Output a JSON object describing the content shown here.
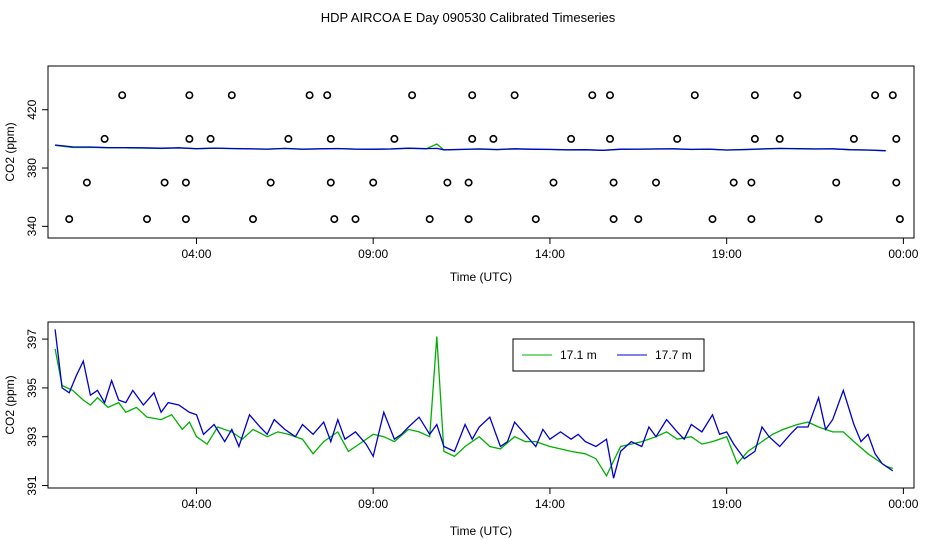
{
  "title": "HDP AIRCOA E  Day 090530  Calibrated Timeseries",
  "colors": {
    "series_17_1": "#00b000",
    "series_17_7": "#0000cc",
    "axis": "#000000"
  },
  "chart_data": [
    {
      "type": "line",
      "xlabel": "Time (UTC)",
      "ylabel": "CO2 (ppm)",
      "x_ticks": [
        "04:00",
        "09:00",
        "14:00",
        "19:00",
        "00:00"
      ],
      "x_tick_hours": [
        4,
        9,
        14,
        19,
        24
      ],
      "xlim_hours": [
        -0.2,
        24.3
      ],
      "y_ticks": [
        340,
        380,
        420
      ],
      "ylim": [
        332,
        450
      ],
      "grid": false,
      "series": [
        {
          "key": "17.1",
          "color": "#00b000",
          "x": [
            0.0,
            0.5,
            1.0,
            1.5,
            2.0,
            2.5,
            3.0,
            3.5,
            4.0,
            4.5,
            5.0,
            5.5,
            6.0,
            6.5,
            7.0,
            7.5,
            8.0,
            8.5,
            9.0,
            9.5,
            10.0,
            10.5,
            10.8,
            11.0,
            11.5,
            12.0,
            12.5,
            13.0,
            13.5,
            14.0,
            14.5,
            15.0,
            15.5,
            16.0,
            16.5,
            17.0,
            17.5,
            18.0,
            18.5,
            19.0,
            19.5,
            20.0,
            20.5,
            21.0,
            21.5,
            22.0,
            22.5,
            23.0,
            23.5
          ],
          "y": [
            395.5,
            394.1,
            394.2,
            393.9,
            393.8,
            393.7,
            393.4,
            393.8,
            393.2,
            393.6,
            393.3,
            393.1,
            392.9,
            393.4,
            392.8,
            393.1,
            393.3,
            392.9,
            392.8,
            393.0,
            393.5,
            393.2,
            396.5,
            392.4,
            392.7,
            393.0,
            392.6,
            393.1,
            392.8,
            392.7,
            392.4,
            392.5,
            392.1,
            392.8,
            392.9,
            393.0,
            393.1,
            392.7,
            392.9,
            392.3,
            392.6,
            393.0,
            393.4,
            393.2,
            393.0,
            393.1,
            392.5,
            392.3,
            391.8
          ]
        },
        {
          "key": "17.7",
          "color": "#0000cc",
          "x": [
            0.0,
            0.5,
            1.0,
            1.5,
            2.0,
            2.5,
            3.0,
            3.5,
            4.0,
            4.5,
            5.0,
            5.5,
            6.0,
            6.5,
            7.0,
            7.5,
            8.0,
            8.5,
            9.0,
            9.5,
            10.0,
            10.5,
            10.8,
            11.0,
            11.5,
            12.0,
            12.5,
            13.0,
            13.5,
            14.0,
            14.5,
            15.0,
            15.5,
            16.0,
            16.5,
            17.0,
            17.5,
            18.0,
            18.5,
            19.0,
            19.5,
            20.0,
            20.5,
            21.0,
            21.5,
            22.0,
            22.5,
            23.0,
            23.5
          ],
          "y": [
            395.8,
            394.5,
            394.4,
            394.0,
            394.0,
            393.9,
            393.6,
            393.9,
            393.3,
            393.7,
            393.4,
            393.2,
            393.0,
            393.5,
            393.0,
            393.2,
            393.4,
            393.0,
            392.9,
            393.1,
            393.6,
            393.3,
            393.5,
            392.5,
            392.8,
            393.1,
            392.7,
            393.2,
            392.9,
            392.8,
            392.5,
            392.6,
            392.2,
            392.9,
            393.0,
            393.1,
            393.2,
            392.8,
            393.0,
            392.4,
            392.7,
            393.1,
            393.5,
            393.3,
            393.1,
            393.2,
            392.6,
            392.4,
            391.9
          ]
        }
      ],
      "markers": {
        "symbol": "circle",
        "points": [
          {
            "x": 1.9,
            "y": 430
          },
          {
            "x": 3.8,
            "y": 430
          },
          {
            "x": 5.0,
            "y": 430
          },
          {
            "x": 7.2,
            "y": 430
          },
          {
            "x": 7.7,
            "y": 430
          },
          {
            "x": 10.1,
            "y": 430
          },
          {
            "x": 11.8,
            "y": 430
          },
          {
            "x": 13.0,
            "y": 430
          },
          {
            "x": 15.2,
            "y": 430
          },
          {
            "x": 15.7,
            "y": 430
          },
          {
            "x": 18.1,
            "y": 430
          },
          {
            "x": 19.8,
            "y": 430
          },
          {
            "x": 21.0,
            "y": 430
          },
          {
            "x": 23.2,
            "y": 430
          },
          {
            "x": 23.7,
            "y": 430
          },
          {
            "x": 1.4,
            "y": 400
          },
          {
            "x": 3.8,
            "y": 400
          },
          {
            "x": 4.4,
            "y": 400
          },
          {
            "x": 6.6,
            "y": 400
          },
          {
            "x": 7.8,
            "y": 400
          },
          {
            "x": 9.6,
            "y": 400
          },
          {
            "x": 11.8,
            "y": 400
          },
          {
            "x": 12.4,
            "y": 400
          },
          {
            "x": 14.6,
            "y": 400
          },
          {
            "x": 15.7,
            "y": 400
          },
          {
            "x": 17.6,
            "y": 400
          },
          {
            "x": 19.8,
            "y": 400
          },
          {
            "x": 20.5,
            "y": 400
          },
          {
            "x": 22.6,
            "y": 400
          },
          {
            "x": 23.8,
            "y": 400
          },
          {
            "x": 0.9,
            "y": 370
          },
          {
            "x": 3.1,
            "y": 370
          },
          {
            "x": 3.7,
            "y": 370
          },
          {
            "x": 6.1,
            "y": 370
          },
          {
            "x": 7.8,
            "y": 370
          },
          {
            "x": 9.0,
            "y": 370
          },
          {
            "x": 11.1,
            "y": 370
          },
          {
            "x": 11.7,
            "y": 370
          },
          {
            "x": 14.1,
            "y": 370
          },
          {
            "x": 15.8,
            "y": 370
          },
          {
            "x": 17.0,
            "y": 370
          },
          {
            "x": 19.2,
            "y": 370
          },
          {
            "x": 19.7,
            "y": 370
          },
          {
            "x": 22.1,
            "y": 370
          },
          {
            "x": 23.8,
            "y": 370
          },
          {
            "x": 0.4,
            "y": 345
          },
          {
            "x": 2.6,
            "y": 345
          },
          {
            "x": 3.7,
            "y": 345
          },
          {
            "x": 5.6,
            "y": 345
          },
          {
            "x": 7.9,
            "y": 345
          },
          {
            "x": 8.5,
            "y": 345
          },
          {
            "x": 10.6,
            "y": 345
          },
          {
            "x": 11.7,
            "y": 345
          },
          {
            "x": 13.6,
            "y": 345
          },
          {
            "x": 15.8,
            "y": 345
          },
          {
            "x": 16.5,
            "y": 345
          },
          {
            "x": 18.6,
            "y": 345
          },
          {
            "x": 19.7,
            "y": 345
          },
          {
            "x": 21.6,
            "y": 345
          },
          {
            "x": 23.9,
            "y": 345
          }
        ]
      }
    },
    {
      "type": "line",
      "xlabel": "Time (UTC)",
      "ylabel": "CO2 (ppm)",
      "x_ticks": [
        "04:00",
        "09:00",
        "14:00",
        "19:00",
        "00:00"
      ],
      "x_tick_hours": [
        4,
        9,
        14,
        19,
        24
      ],
      "xlim_hours": [
        -0.2,
        24.3
      ],
      "y_ticks": [
        391,
        393,
        395,
        397
      ],
      "ylim": [
        390.9,
        397.7
      ],
      "grid": false,
      "legend": {
        "placement": "top-center",
        "entries": [
          "17.1 m",
          "17.7 m"
        ]
      },
      "series": [
        {
          "name": "17.1 m",
          "color": "#00b000",
          "x": [
            0.0,
            0.2,
            0.5,
            0.8,
            1.0,
            1.2,
            1.5,
            1.8,
            2.0,
            2.3,
            2.6,
            3.0,
            3.3,
            3.6,
            3.8,
            4.0,
            4.3,
            4.6,
            5.0,
            5.3,
            5.6,
            6.0,
            6.3,
            6.6,
            7.0,
            7.3,
            7.6,
            8.0,
            8.3,
            8.6,
            9.0,
            9.3,
            9.6,
            10.0,
            10.3,
            10.6,
            10.8,
            11.0,
            11.3,
            11.6,
            12.0,
            12.3,
            12.6,
            13.0,
            13.3,
            13.6,
            14.0,
            14.3,
            14.6,
            15.0,
            15.3,
            15.6,
            16.0,
            16.3,
            16.6,
            17.0,
            17.3,
            17.6,
            18.0,
            18.3,
            18.6,
            19.0,
            19.3,
            19.6,
            20.0,
            20.3,
            20.6,
            21.0,
            21.3,
            21.6,
            22.0,
            22.3,
            22.6,
            23.0,
            23.3,
            23.5,
            23.7
          ],
          "y": [
            396.6,
            395.1,
            394.9,
            394.5,
            394.3,
            394.6,
            394.2,
            394.4,
            394.0,
            394.2,
            393.8,
            393.7,
            393.9,
            393.3,
            393.6,
            393.0,
            392.7,
            393.4,
            393.2,
            392.9,
            393.3,
            393.0,
            393.2,
            393.1,
            392.9,
            392.3,
            392.8,
            393.2,
            392.4,
            392.7,
            393.1,
            393.0,
            392.8,
            393.3,
            393.2,
            393.0,
            397.1,
            392.4,
            392.2,
            392.6,
            393.0,
            392.6,
            392.5,
            393.0,
            392.8,
            392.8,
            392.6,
            392.5,
            392.4,
            392.3,
            392.1,
            391.4,
            392.6,
            392.7,
            392.8,
            393.0,
            393.2,
            392.9,
            393.0,
            392.7,
            392.8,
            393.0,
            391.9,
            392.4,
            392.8,
            393.1,
            393.3,
            393.5,
            393.6,
            393.4,
            393.2,
            393.2,
            392.8,
            392.3,
            392.0,
            391.8,
            391.7
          ]
        },
        {
          "name": "17.7 m",
          "color": "#0000cc",
          "x": [
            0.0,
            0.2,
            0.4,
            0.6,
            0.8,
            1.0,
            1.2,
            1.4,
            1.6,
            1.8,
            2.0,
            2.2,
            2.5,
            2.8,
            3.0,
            3.2,
            3.5,
            3.8,
            4.0,
            4.2,
            4.5,
            4.8,
            5.0,
            5.2,
            5.5,
            5.8,
            6.0,
            6.2,
            6.5,
            6.8,
            7.0,
            7.3,
            7.6,
            7.8,
            8.0,
            8.2,
            8.5,
            8.8,
            9.0,
            9.3,
            9.6,
            9.8,
            10.0,
            10.3,
            10.6,
            10.8,
            11.0,
            11.3,
            11.6,
            11.8,
            12.0,
            12.3,
            12.6,
            12.8,
            13.0,
            13.3,
            13.6,
            13.8,
            14.0,
            14.3,
            14.6,
            14.8,
            15.0,
            15.3,
            15.6,
            15.8,
            16.0,
            16.3,
            16.6,
            16.8,
            17.0,
            17.3,
            17.6,
            17.8,
            18.0,
            18.3,
            18.6,
            18.8,
            19.0,
            19.2,
            19.5,
            19.8,
            20.0,
            20.2,
            20.5,
            20.8,
            21.0,
            21.3,
            21.6,
            21.8,
            22.0,
            22.3,
            22.6,
            22.8,
            23.0,
            23.2,
            23.4,
            23.6,
            23.7
          ],
          "y": [
            397.4,
            395.0,
            394.8,
            395.5,
            396.1,
            394.7,
            394.9,
            394.4,
            395.3,
            394.5,
            394.4,
            394.9,
            394.3,
            394.8,
            394.0,
            394.4,
            394.3,
            394.0,
            393.9,
            393.1,
            393.5,
            392.8,
            393.3,
            392.6,
            393.9,
            393.4,
            393.1,
            393.7,
            393.3,
            393.0,
            393.5,
            393.1,
            393.6,
            392.8,
            393.7,
            392.9,
            393.2,
            392.7,
            392.2,
            394.0,
            392.9,
            393.1,
            393.4,
            393.8,
            393.1,
            393.5,
            392.6,
            392.4,
            393.5,
            392.9,
            393.4,
            393.8,
            392.6,
            392.8,
            393.6,
            393.1,
            392.6,
            393.3,
            392.9,
            393.2,
            392.9,
            393.1,
            392.8,
            392.6,
            392.9,
            391.3,
            392.4,
            392.8,
            392.6,
            393.4,
            393.0,
            393.7,
            393.2,
            392.9,
            393.5,
            393.2,
            393.9,
            393.1,
            393.2,
            392.7,
            392.1,
            392.4,
            393.4,
            393.0,
            392.6,
            393.1,
            393.4,
            393.4,
            394.6,
            393.3,
            393.7,
            394.9,
            393.5,
            392.8,
            393.1,
            392.3,
            391.9,
            391.7,
            391.6
          ]
        }
      ]
    }
  ]
}
